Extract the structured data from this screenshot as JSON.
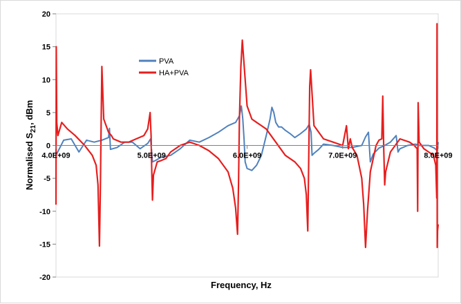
{
  "chart_data": {
    "type": "line",
    "xlabel": "Frequency, Hz",
    "ylabel": "Normalised S21, dBm",
    "ylabel_parts": {
      "pre": "Normalised S",
      "sub": "21",
      "post": ", dBm"
    },
    "xlim": [
      4000000000,
      8000000000
    ],
    "ylim": [
      -20,
      20
    ],
    "x_ticks": [
      4000000000,
      5000000000,
      6000000000,
      7000000000,
      8000000000
    ],
    "x_tick_labels": [
      "4.0E+09",
      "5.0E+09",
      "6.0E+09",
      "7.0E+09",
      "8.0E+09"
    ],
    "y_ticks": [
      -20,
      -15,
      -10,
      -5,
      0,
      5,
      10,
      15,
      20
    ],
    "y_tick_labels": [
      "-20",
      "-15",
      "-10",
      "-5",
      "0",
      "5",
      "10",
      "15",
      "20"
    ],
    "grid": false,
    "legend_position": "upper-left",
    "series": [
      {
        "name": "PVA",
        "color": "#4f81bd",
        "x": [
          4000000000,
          4080000000,
          4160000000,
          4240000000,
          4320000000,
          4400000000,
          4480000000,
          4550000000,
          4560000000,
          4570000000,
          4640000000,
          4720000000,
          4800000000,
          4880000000,
          4960000000,
          4990000000,
          5000000000,
          5010000000,
          5040000000,
          5100000000,
          5200000000,
          5300000000,
          5400000000,
          5500000000,
          5600000000,
          5700000000,
          5800000000,
          5880000000,
          5920000000,
          5940000000,
          5955000000,
          5968000000,
          5980000000,
          6000000000,
          6050000000,
          6100000000,
          6150000000,
          6200000000,
          6240000000,
          6260000000,
          6280000000,
          6300000000,
          6330000000,
          6360000000,
          6400000000,
          6450000000,
          6500000000,
          6560000000,
          6620000000,
          6650000000,
          6670000000,
          6680000000,
          6700000000,
          6750000000,
          6800000000,
          6900000000,
          7000000000,
          7100000000,
          7200000000,
          7240000000,
          7270000000,
          7290000000,
          7320000000,
          7380000000,
          7440000000,
          7500000000,
          7560000000,
          7580000000,
          7600000000,
          7680000000,
          7760000000,
          7800000000,
          7840000000,
          7900000000,
          7960000000,
          7990000000,
          8000000000
        ],
        "y": [
          -1.5,
          0.8,
          1.0,
          -1.0,
          0.8,
          0.5,
          0.8,
          1.2,
          2.6,
          -0.6,
          -0.3,
          0.5,
          0.5,
          -0.5,
          0.3,
          1.0,
          -0.8,
          -2.5,
          -2.3,
          -1.8,
          -1.5,
          -0.5,
          0.8,
          0.5,
          1.2,
          2.0,
          3.0,
          3.5,
          4.5,
          6.0,
          4.0,
          1.0,
          -2.5,
          -3.5,
          -3.8,
          -3.0,
          -1.5,
          1.5,
          4.0,
          5.8,
          5.0,
          3.5,
          2.8,
          2.8,
          2.3,
          1.8,
          1.2,
          1.8,
          2.5,
          3.2,
          2.0,
          -1.5,
          -1.2,
          -0.6,
          0.2,
          0.0,
          -0.3,
          -0.3,
          0.0,
          1.3,
          2.0,
          -2.5,
          -1.3,
          -0.4,
          0.0,
          0.5,
          1.5,
          -1.0,
          -0.5,
          0.0,
          0.2,
          0.0,
          0.0,
          0.0,
          -0.4,
          -0.8,
          0.5
        ]
      },
      {
        "name": "HA+PVA",
        "color": "#e61e1e",
        "x": [
          4000000000,
          4003000000,
          4008000000,
          4020000000,
          4060000000,
          4120000000,
          4200000000,
          4300000000,
          4380000000,
          4420000000,
          4440000000,
          4455000000,
          4465000000,
          4472000000,
          4480000000,
          4500000000,
          4550000000,
          4580000000,
          4600000000,
          4680000000,
          4760000000,
          4840000000,
          4920000000,
          4960000000,
          4985000000,
          4995000000,
          5002000000,
          5010000000,
          5020000000,
          5060000000,
          5100000000,
          5150000000,
          5200000000,
          5300000000,
          5400000000,
          5500000000,
          5600000000,
          5700000000,
          5800000000,
          5850000000,
          5880000000,
          5900000000,
          5910000000,
          5920000000,
          5935000000,
          5950000000,
          6000000000,
          6050000000,
          6100000000,
          6150000000,
          6200000000,
          6300000000,
          6400000000,
          6500000000,
          6560000000,
          6600000000,
          6620000000,
          6635000000,
          6645000000,
          6655000000,
          6665000000,
          6700000000,
          6800000000,
          6900000000,
          7000000000,
          7040000000,
          7060000000,
          7080000000,
          7100000000,
          7150000000,
          7200000000,
          7220000000,
          7240000000,
          7260000000,
          7290000000,
          7320000000,
          7350000000,
          7380000000,
          7410000000,
          7420000000,
          7430000000,
          7440000000,
          7450000000,
          7500000000,
          7600000000,
          7700000000,
          7750000000,
          7780000000,
          7785000000,
          7790000000,
          7800000000,
          7850000000,
          7900000000,
          7950000000,
          7975000000,
          7985000000,
          7988000000,
          7990000000,
          7993000000,
          8000000000
        ],
        "y": [
          -9.0,
          15.0,
          3.5,
          1.5,
          3.5,
          2.5,
          1.5,
          0.0,
          -1.5,
          -3.0,
          -6.0,
          -15.3,
          -6.0,
          3.0,
          12.0,
          4.0,
          2.0,
          1.5,
          1.0,
          0.5,
          0.5,
          1.0,
          1.5,
          2.5,
          5.0,
          1.5,
          -3.5,
          -8.3,
          -4.5,
          -2.5,
          -2.3,
          -2.0,
          -1.0,
          0.0,
          0.5,
          0.0,
          -0.8,
          -2.0,
          -4.0,
          -6.5,
          -9.5,
          -13.5,
          -6.0,
          4.0,
          12.0,
          16.0,
          6.0,
          4.0,
          3.5,
          3.0,
          2.5,
          0.5,
          -1.5,
          -2.5,
          -3.5,
          -5.0,
          -7.5,
          -13.0,
          -2.0,
          9.0,
          11.5,
          3.0,
          1.0,
          0.5,
          0.0,
          3.0,
          -0.5,
          1.0,
          -0.3,
          -1.5,
          -5.0,
          -9.0,
          -15.5,
          -10.0,
          -4.0,
          -2.0,
          0.0,
          0.8,
          1.0,
          7.5,
          -0.5,
          -6.0,
          -4.0,
          -1.0,
          1.0,
          0.5,
          0.0,
          -0.5,
          -10.0,
          6.5,
          0.5,
          -0.5,
          -1.0,
          -1.5,
          -3.0,
          -8.0,
          18.5,
          -15.5,
          -13.0,
          -12.0
        ]
      }
    ]
  }
}
